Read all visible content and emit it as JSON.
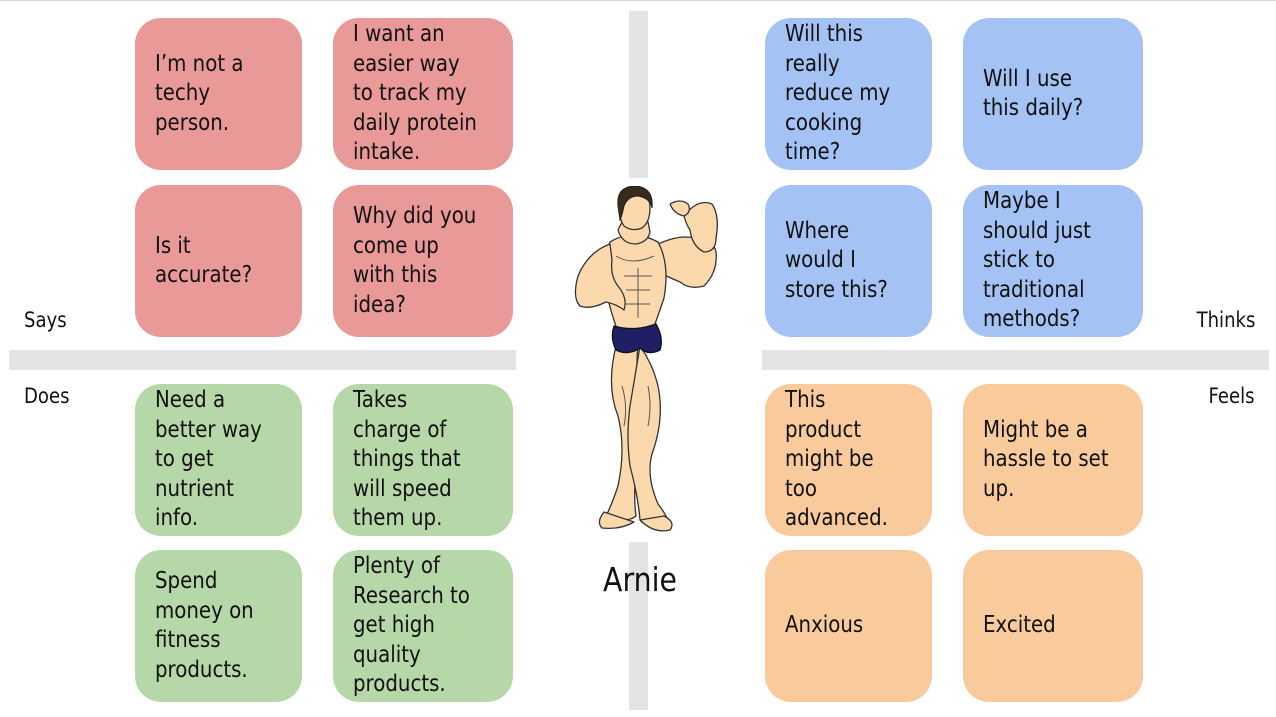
{
  "persona": {
    "name": "Arnie",
    "image": "bodybuilder-illustration"
  },
  "labels": {
    "says": "Says",
    "thinks": "Thinks",
    "does": "Does",
    "feels": "Feels"
  },
  "colors": {
    "says": "#ea9999",
    "thinks": "#a4c2f4",
    "does": "#b6d7a8",
    "feels": "#f9cb9c"
  },
  "says": [
    {
      "text": "I’m not a techy person."
    },
    {
      "text": "I want an easier way to track my daily protein intake."
    },
    {
      "text": "Is it accurate?"
    },
    {
      "text": "Why did you come up with this idea?"
    }
  ],
  "thinks": [
    {
      "text": "Will this really reduce my cooking time?"
    },
    {
      "text": "Will I use this daily?"
    },
    {
      "text": "Where would I store this?"
    },
    {
      "text": "Maybe I should just stick to traditional methods?"
    }
  ],
  "does": [
    {
      "text": "Need a better way to get nutrient info."
    },
    {
      "text": "Takes charge of things that will speed them up."
    },
    {
      "text": "Spend money on fitness products."
    },
    {
      "text": "Plenty of Research to get high quality products."
    }
  ],
  "feels": [
    {
      "text": "This product might be too advanced."
    },
    {
      "text": "Might be a hassle to set up."
    },
    {
      "text": "Anxious"
    },
    {
      "text": "Excited"
    }
  ]
}
